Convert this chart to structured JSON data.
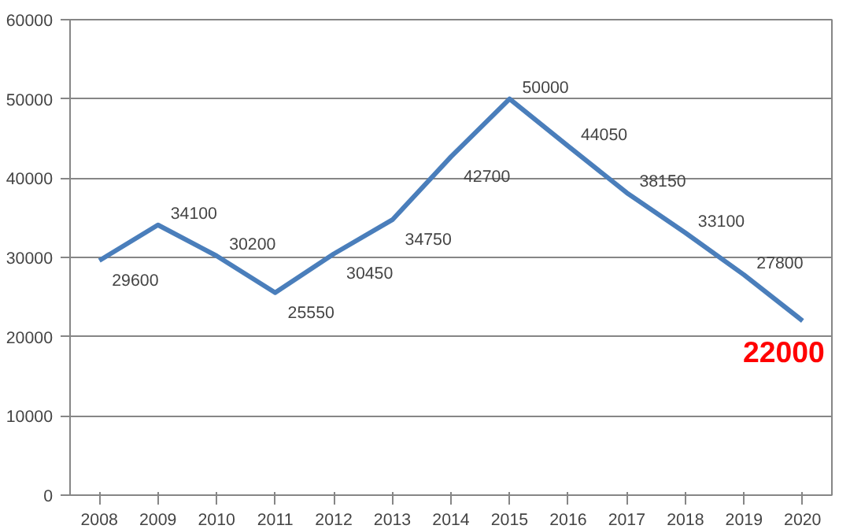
{
  "chart_data": {
    "type": "line",
    "categories": [
      "2008",
      "2009",
      "2010",
      "2011",
      "2012",
      "2013",
      "2014",
      "2015",
      "2016",
      "2017",
      "2018",
      "2019",
      "2020"
    ],
    "series": [
      {
        "color": "#4a7ebb",
        "values": [
          29600,
          34100,
          30200,
          25550,
          30450,
          34750,
          42700,
          50000,
          44050,
          38150,
          33100,
          27800,
          22000
        ]
      }
    ],
    "ylim": [
      0,
      60000
    ],
    "yticks": [
      0,
      10000,
      20000,
      30000,
      40000,
      50000,
      60000
    ],
    "grid": "y",
    "data_labels": true,
    "marker": "none",
    "line_style": "solid"
  }
}
